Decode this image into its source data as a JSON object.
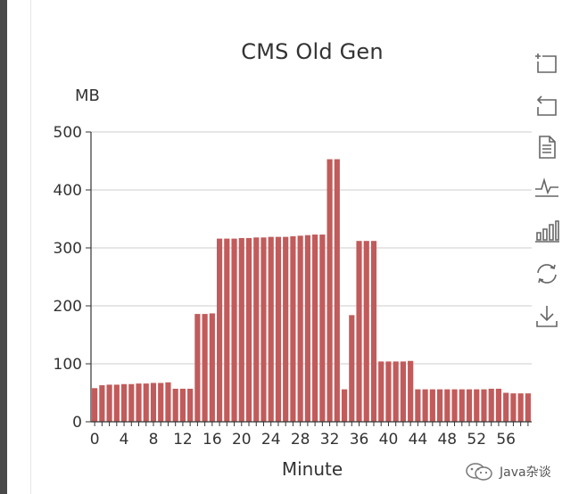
{
  "chart_data": {
    "type": "bar",
    "title": "CMS Old Gen",
    "ylabel": "MB",
    "xlabel": "Minute",
    "ylim": [
      0,
      500
    ],
    "yticks": [
      0,
      100,
      200,
      300,
      400,
      500
    ],
    "xticks": [
      0,
      4,
      8,
      12,
      16,
      20,
      24,
      28,
      32,
      36,
      40,
      44,
      48,
      52,
      56
    ],
    "categories": [
      0,
      1,
      2,
      3,
      4,
      5,
      6,
      7,
      8,
      9,
      10,
      11,
      12,
      13,
      14,
      15,
      16,
      17,
      18,
      19,
      20,
      21,
      22,
      23,
      24,
      25,
      26,
      27,
      28,
      29,
      30,
      31,
      32,
      33,
      34,
      35,
      36,
      37,
      38,
      39,
      40,
      41,
      42,
      43,
      44,
      45,
      46,
      47,
      48,
      49,
      50,
      51,
      52,
      53,
      54,
      55,
      56,
      57,
      58,
      59
    ],
    "values": [
      58,
      63,
      64,
      64,
      65,
      65,
      66,
      66,
      67,
      67,
      68,
      57,
      57,
      57,
      186,
      186,
      187,
      316,
      316,
      316,
      317,
      317,
      318,
      318,
      319,
      319,
      319,
      320,
      321,
      322,
      323,
      323,
      453,
      453,
      56,
      184,
      312,
      312,
      312,
      104,
      104,
      104,
      104,
      105,
      56,
      56,
      56,
      56,
      56,
      56,
      56,
      56,
      56,
      56,
      57,
      57,
      50,
      49,
      49,
      49
    ],
    "bar_color": "#c25b5b",
    "grid": true,
    "legend": "none"
  },
  "toolbox": {
    "items": [
      {
        "name": "data-zoom-icon"
      },
      {
        "name": "zoom-reset-icon"
      },
      {
        "name": "data-view-icon"
      },
      {
        "name": "line-chart-icon"
      },
      {
        "name": "bar-chart-icon"
      },
      {
        "name": "restore-icon"
      },
      {
        "name": "save-image-icon"
      }
    ]
  },
  "watermark": {
    "text": "Java杂谈"
  }
}
